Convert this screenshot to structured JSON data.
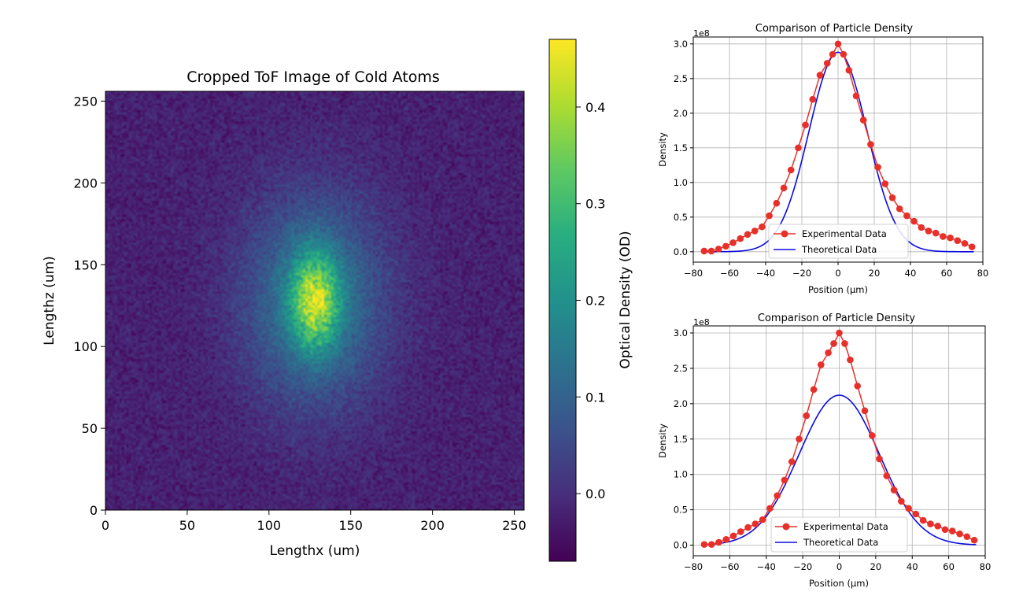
{
  "chart_data": [
    {
      "type": "heatmap",
      "title": "Cropped ToF Image of Cold Atoms",
      "xlabel": "Lengthx (um)",
      "ylabel": "Lengthz (um)",
      "xlim": [
        0,
        256
      ],
      "ylim": [
        0,
        256
      ],
      "xticks": [
        0,
        50,
        100,
        150,
        200,
        250
      ],
      "yticks": [
        0,
        50,
        100,
        150,
        200,
        250
      ],
      "colormap": "viridis",
      "colorbar": {
        "label": "Optical Density (OD)",
        "range": [
          -0.07,
          0.47
        ],
        "ticks": [
          0.0,
          0.1,
          0.2,
          0.3,
          0.4
        ],
        "tick_labels": [
          "0.0",
          "0.1",
          "0.2",
          "0.3",
          "0.4"
        ]
      },
      "cloud": {
        "center": [
          128,
          128
        ],
        "peak_od": 0.45,
        "background_od": -0.02,
        "core_sigma": [
          10,
          20
        ],
        "halo_sigma": [
          30,
          45
        ]
      }
    },
    {
      "type": "line",
      "title": "Comparison of Particle Density",
      "xlabel": "Position (µm)",
      "ylabel": "Density",
      "offset_label": "1e8",
      "xlim": [
        -80,
        80
      ],
      "ylim": [
        -0.15,
        3.1
      ],
      "xticks": [
        -80,
        -60,
        -40,
        -20,
        0,
        20,
        40,
        60,
        80
      ],
      "yticks": [
        0.0,
        0.5,
        1.0,
        1.5,
        2.0,
        2.5,
        3.0
      ],
      "grid": true,
      "legend": "lower center",
      "series": [
        {
          "name": "Experimental Data",
          "color": "#e8302a",
          "marker": "circle",
          "points": [
            [
              -74,
              0.01
            ],
            [
              -70,
              0.01
            ],
            [
              -66,
              0.04
            ],
            [
              -62,
              0.08
            ],
            [
              -58,
              0.13
            ],
            [
              -54,
              0.19
            ],
            [
              -50,
              0.25
            ],
            [
              -46,
              0.3
            ],
            [
              -42,
              0.36
            ],
            [
              -38,
              0.52
            ],
            [
              -34,
              0.7
            ],
            [
              -30,
              0.92
            ],
            [
              -26,
              1.18
            ],
            [
              -22,
              1.5
            ],
            [
              -18,
              1.83
            ],
            [
              -14,
              2.2
            ],
            [
              -10,
              2.55
            ],
            [
              -6,
              2.72
            ],
            [
              -3,
              2.85
            ],
            [
              0,
              3.0
            ],
            [
              3,
              2.85
            ],
            [
              6,
              2.62
            ],
            [
              10,
              2.25
            ],
            [
              14,
              1.9
            ],
            [
              18,
              1.55
            ],
            [
              22,
              1.22
            ],
            [
              26,
              0.98
            ],
            [
              30,
              0.78
            ],
            [
              34,
              0.62
            ],
            [
              38,
              0.52
            ],
            [
              42,
              0.44
            ],
            [
              46,
              0.35
            ],
            [
              50,
              0.3
            ],
            [
              54,
              0.27
            ],
            [
              58,
              0.22
            ],
            [
              62,
              0.2
            ],
            [
              66,
              0.16
            ],
            [
              70,
              0.12
            ],
            [
              74,
              0.07
            ]
          ]
        },
        {
          "name": "Theoretical Data",
          "color": "#0b0bdf",
          "function": "gaussian",
          "amplitude": 2.88,
          "sigma": 16,
          "x_range": [
            -75,
            75
          ]
        }
      ]
    },
    {
      "type": "line",
      "title": "Comparison of Particle Density",
      "xlabel": "Position (µm)",
      "ylabel": "Density",
      "offset_label": "1e8",
      "xlim": [
        -80,
        80
      ],
      "ylim": [
        -0.15,
        3.1
      ],
      "xticks": [
        -80,
        -60,
        -40,
        -20,
        0,
        20,
        40,
        60,
        80
      ],
      "yticks": [
        0.0,
        0.5,
        1.0,
        1.5,
        2.0,
        2.5,
        3.0
      ],
      "grid": true,
      "legend": "lower center",
      "series": [
        {
          "name": "Experimental Data",
          "color": "#e8302a",
          "marker": "circle",
          "points": [
            [
              -74,
              0.01
            ],
            [
              -70,
              0.01
            ],
            [
              -66,
              0.04
            ],
            [
              -62,
              0.08
            ],
            [
              -58,
              0.13
            ],
            [
              -54,
              0.19
            ],
            [
              -50,
              0.25
            ],
            [
              -46,
              0.3
            ],
            [
              -42,
              0.36
            ],
            [
              -38,
              0.52
            ],
            [
              -34,
              0.7
            ],
            [
              -30,
              0.92
            ],
            [
              -26,
              1.18
            ],
            [
              -22,
              1.5
            ],
            [
              -18,
              1.83
            ],
            [
              -14,
              2.2
            ],
            [
              -10,
              2.55
            ],
            [
              -6,
              2.72
            ],
            [
              -3,
              2.85
            ],
            [
              0,
              3.0
            ],
            [
              3,
              2.85
            ],
            [
              6,
              2.62
            ],
            [
              10,
              2.25
            ],
            [
              14,
              1.9
            ],
            [
              18,
              1.55
            ],
            [
              22,
              1.22
            ],
            [
              26,
              0.98
            ],
            [
              30,
              0.78
            ],
            [
              34,
              0.62
            ],
            [
              38,
              0.52
            ],
            [
              42,
              0.44
            ],
            [
              46,
              0.35
            ],
            [
              50,
              0.3
            ],
            [
              54,
              0.27
            ],
            [
              58,
              0.22
            ],
            [
              62,
              0.2
            ],
            [
              66,
              0.16
            ],
            [
              70,
              0.12
            ],
            [
              74,
              0.07
            ]
          ]
        },
        {
          "name": "Theoretical Data",
          "color": "#0b0bdf",
          "function": "gaussian",
          "amplitude": 2.12,
          "sigma": 22,
          "x_range": [
            -75,
            75
          ]
        }
      ]
    }
  ]
}
